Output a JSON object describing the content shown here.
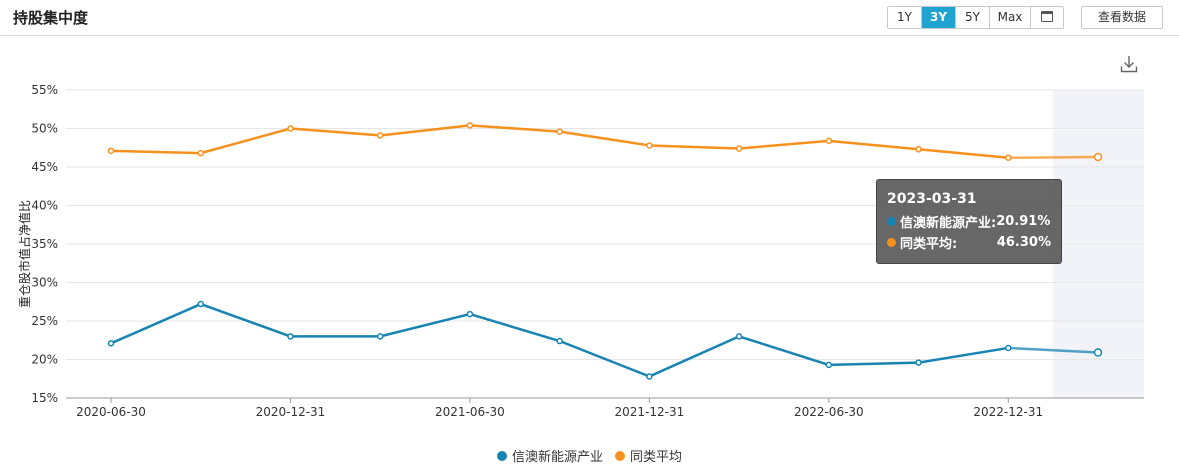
{
  "header": {
    "title": "持股集中度",
    "ranges": [
      "1Y",
      "3Y",
      "5Y",
      "Max"
    ],
    "active_range": "3Y",
    "calendar_icon": "calendar-icon",
    "view_data_label": "查看数据",
    "download_icon": "download-icon"
  },
  "colors": {
    "fund": "#1784b4",
    "peer": "#f6911e",
    "active_tab": "#1fa4d0"
  },
  "tooltip": {
    "date": "2023-03-31",
    "rows": [
      {
        "label": "信澳新能源产业:",
        "value": "20.91%"
      },
      {
        "label": "同类平均:",
        "value": "46.30%"
      }
    ]
  },
  "chart_data": {
    "type": "line",
    "title": "",
    "xlabel": "",
    "ylabel": "重仓股市值占净值比",
    "ylim": [
      15,
      55
    ],
    "y_ticks": [
      "15%",
      "20%",
      "25%",
      "30%",
      "35%",
      "40%",
      "45%",
      "50%",
      "55%"
    ],
    "x": [
      "2020-06-30",
      "2020-09-30",
      "2020-12-31",
      "2021-03-31",
      "2021-06-30",
      "2021-09-30",
      "2021-12-31",
      "2022-03-31",
      "2022-06-30",
      "2022-09-30",
      "2022-12-31",
      "2023-03-31"
    ],
    "x_tick_labels": [
      "2020-06-30",
      "2020-12-31",
      "2021-06-30",
      "2021-12-31",
      "2022-06-30",
      "2022-12-31"
    ],
    "grid": true,
    "legend_position": "bottom-center",
    "series": [
      {
        "name": "信澳新能源产业",
        "values": [
          22.1,
          27.2,
          23.0,
          23.0,
          25.9,
          22.4,
          17.8,
          23.0,
          19.3,
          19.6,
          21.5,
          20.91
        ]
      },
      {
        "name": "同类平均",
        "values": [
          47.1,
          46.8,
          50.0,
          49.1,
          50.4,
          49.6,
          47.8,
          47.4,
          48.4,
          47.3,
          46.2,
          46.3
        ]
      }
    ]
  }
}
